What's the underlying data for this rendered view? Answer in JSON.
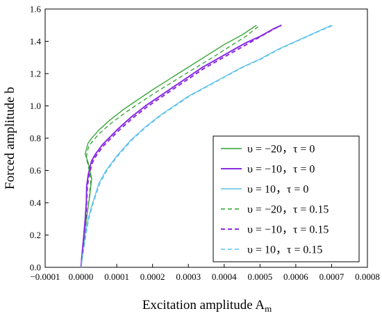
{
  "chart_data": {
    "type": "line",
    "title": "",
    "xlabel": "Excitation amplitude A",
    "xlabel_sub": "m",
    "ylabel": "Forced amplitude b",
    "xlim": [
      -0.0001,
      0.0008
    ],
    "ylim": [
      0.0,
      1.6
    ],
    "x_ticks": [
      "−0.0001",
      "0.0000",
      "0.0001",
      "0.0002",
      "0.0003",
      "0.0004",
      "0.0005",
      "0.0006",
      "0.0007",
      "0.0008"
    ],
    "y_ticks": [
      "0.0",
      "0.2",
      "0.4",
      "0.6",
      "0.8",
      "1.0",
      "1.2",
      "1.4",
      "1.6"
    ],
    "grid": false,
    "legend_position": "bottom-right",
    "series": [
      {
        "name": "υ = −20，τ = 0",
        "color": "#2ca02c",
        "dash": "solid",
        "x": [
          0.0,
          4e-06,
          9e-06,
          1.5e-05,
          2.5e-05,
          3e-05,
          2e-05,
          1.2e-05,
          1.6e-05,
          2e-05,
          3e-05,
          5e-05,
          8e-05,
          0.00012,
          0.00016,
          0.0002,
          0.00025,
          0.0003,
          0.00035,
          0.0004,
          0.00045,
          0.00049
        ],
        "y": [
          0.0,
          0.1,
          0.2,
          0.3,
          0.45,
          0.55,
          0.65,
          0.7,
          0.74,
          0.77,
          0.8,
          0.85,
          0.91,
          0.98,
          1.04,
          1.1,
          1.17,
          1.24,
          1.31,
          1.38,
          1.44,
          1.5
        ]
      },
      {
        "name": "υ = −10，τ = 0",
        "color": "#8a2be2",
        "dash": "solid",
        "x": [
          0.0,
          4e-06,
          8e-06,
          1.2e-05,
          1.5e-05,
          1.6e-05,
          2e-05,
          2.5e-05,
          3e-05,
          4e-05,
          6e-05,
          0.0001,
          0.00014,
          0.00018,
          0.00022,
          0.00026,
          0.0003,
          0.00034,
          0.00038,
          0.00042,
          0.00046,
          0.0005,
          0.00054,
          0.00056
        ],
        "y": [
          0.0,
          0.1,
          0.2,
          0.3,
          0.4,
          0.5,
          0.57,
          0.62,
          0.66,
          0.7,
          0.76,
          0.85,
          0.93,
          1.0,
          1.06,
          1.12,
          1.18,
          1.24,
          1.29,
          1.34,
          1.39,
          1.43,
          1.48,
          1.5
        ]
      },
      {
        "name": "υ = 10，τ = 0",
        "color": "#5bc0eb",
        "dash": "solid",
        "x": [
          0.0,
          6e-06,
          1.2e-05,
          2e-05,
          3e-05,
          4e-05,
          5e-05,
          7e-05,
          0.0001,
          0.00014,
          0.00018,
          0.00022,
          0.00026,
          0.0003,
          0.00035,
          0.0004,
          0.00045,
          0.0005,
          0.00055,
          0.0006,
          0.00065,
          0.0007
        ],
        "y": [
          0.0,
          0.1,
          0.2,
          0.3,
          0.38,
          0.45,
          0.52,
          0.6,
          0.69,
          0.79,
          0.87,
          0.94,
          1.0,
          1.06,
          1.12,
          1.18,
          1.24,
          1.29,
          1.35,
          1.4,
          1.45,
          1.5
        ]
      },
      {
        "name": "υ = −20，τ = 0.15",
        "color": "#2ca02c",
        "dash": "dashed",
        "x": [
          0.0,
          5e-06,
          1e-05,
          1.6e-05,
          2.4e-05,
          2.8e-05,
          2e-05,
          1.5e-05,
          1.8e-05,
          2.2e-05,
          3.2e-05,
          5.2e-05,
          8.3e-05,
          0.000125,
          0.000165,
          0.000206,
          0.000257,
          0.000308,
          0.00036,
          0.00041,
          0.00046,
          0.0005
        ],
        "y": [
          0.0,
          0.1,
          0.2,
          0.3,
          0.45,
          0.55,
          0.63,
          0.68,
          0.72,
          0.75,
          0.78,
          0.83,
          0.89,
          0.96,
          1.02,
          1.08,
          1.15,
          1.22,
          1.29,
          1.36,
          1.43,
          1.5
        ]
      },
      {
        "name": "υ = −10，τ = 0.15",
        "color": "#8a2be2",
        "dash": "dashed",
        "x": [
          0.0,
          4e-06,
          9e-06,
          1.3e-05,
          1.6e-05,
          1.8e-05,
          2.2e-05,
          2.7e-05,
          3.2e-05,
          4.2e-05,
          6.2e-05,
          0.000102,
          0.000142,
          0.000182,
          0.000222,
          0.000262,
          0.000302,
          0.000342,
          0.000382,
          0.000422,
          0.000462,
          0.000502,
          0.000542,
          0.00056
        ],
        "y": [
          0.0,
          0.1,
          0.2,
          0.3,
          0.4,
          0.5,
          0.56,
          0.61,
          0.65,
          0.69,
          0.75,
          0.84,
          0.92,
          0.99,
          1.05,
          1.11,
          1.17,
          1.23,
          1.28,
          1.33,
          1.38,
          1.43,
          1.48,
          1.5
        ]
      },
      {
        "name": "υ = 10，τ = 0.15",
        "color": "#5bc0eb",
        "dash": "dashed",
        "x": [
          0.0,
          7e-06,
          1.4e-05,
          2.2e-05,
          3.2e-05,
          4.2e-05,
          5.3e-05,
          7.3e-05,
          0.000103,
          0.000143,
          0.000183,
          0.000223,
          0.000263,
          0.000303,
          0.000353,
          0.000403,
          0.000453,
          0.000503,
          0.000553,
          0.000603,
          0.000653,
          0.000705
        ],
        "y": [
          0.0,
          0.1,
          0.2,
          0.3,
          0.38,
          0.45,
          0.52,
          0.6,
          0.69,
          0.79,
          0.87,
          0.94,
          1.0,
          1.06,
          1.12,
          1.18,
          1.24,
          1.29,
          1.35,
          1.4,
          1.45,
          1.5
        ]
      }
    ]
  }
}
